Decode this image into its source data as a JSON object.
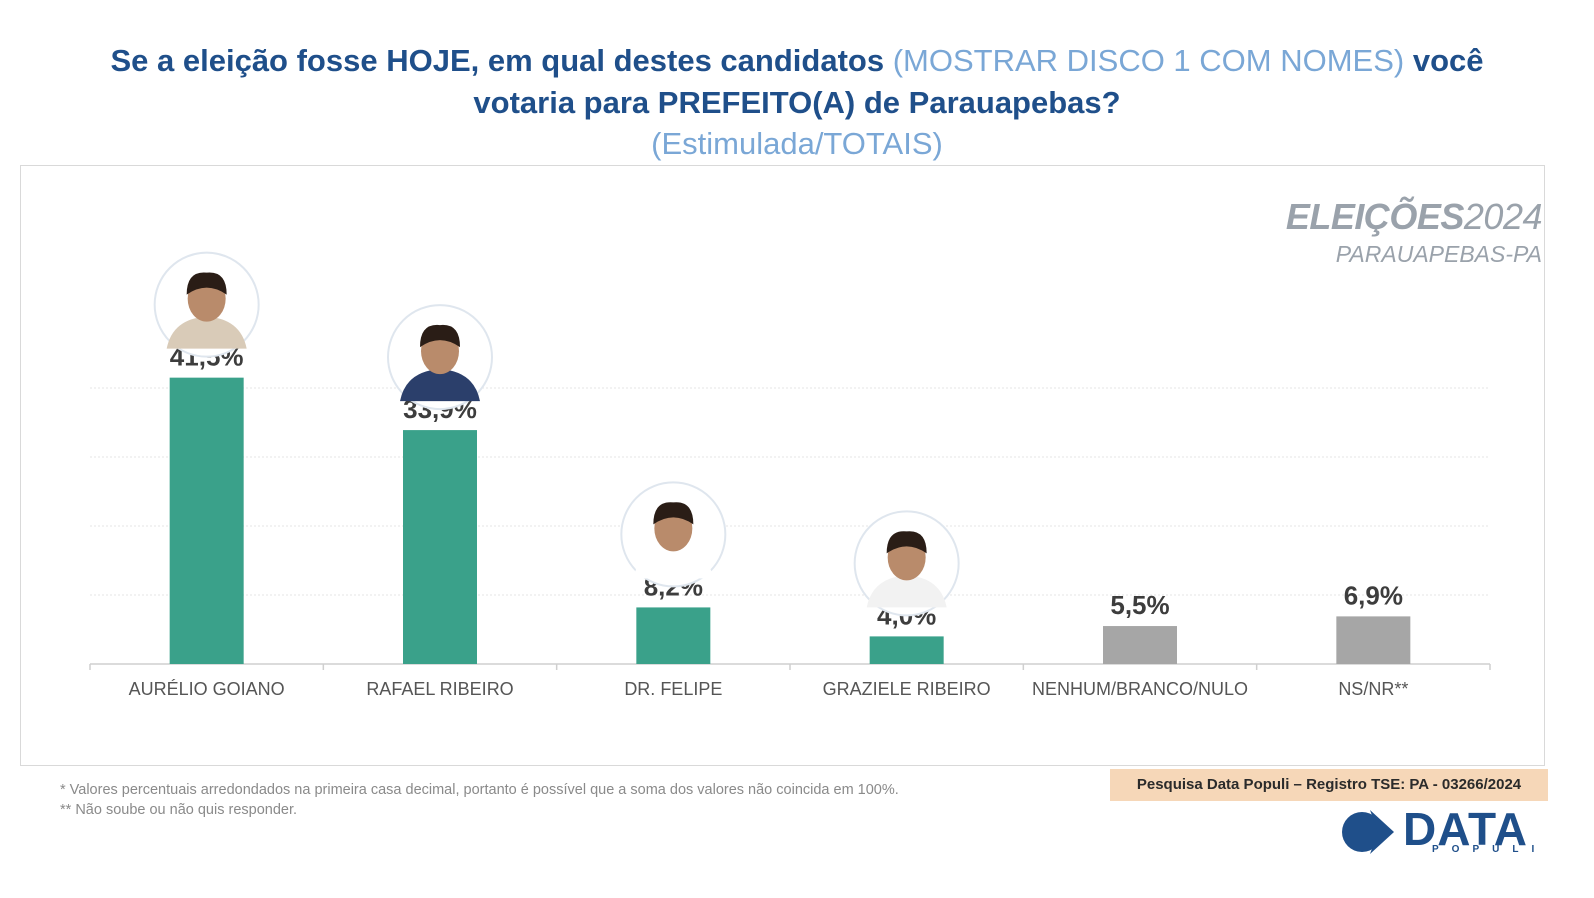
{
  "header": {
    "title_part1": "Se a eleição fosse HOJE, em qual destes candidatos",
    "title_highlight": "(MOSTRAR DISCO 1 COM NOMES)",
    "title_part2": "você",
    "title_line2": "votaria para PREFEITO(A) de Parauapebas?",
    "subtitle": "(Estimulada/TOTAIS)"
  },
  "brand": {
    "title_bold": "ELEIÇÕES",
    "title_year": "2024",
    "subtitle": "PARAUAPEBAS-PA"
  },
  "chart_data": {
    "type": "bar",
    "title": "Se a eleição fosse HOJE, em qual destes candidatos (MOSTRAR DISCO 1 COM NOMES) você votaria para PREFEITO(A) de Parauapebas?",
    "categories": [
      "AURÉLIO GOIANO",
      "RAFAEL RIBEIRO",
      "DR. FELIPE",
      "GRAZIELE RIBEIRO",
      "NENHUM/BRANCO/NULO",
      "NS/NR**"
    ],
    "values": [
      41.5,
      33.9,
      8.2,
      4.0,
      5.5,
      6.9
    ],
    "value_labels": [
      "41,5%",
      "33,9%",
      "8,2%",
      "4,0%",
      "5,5%",
      "6,9%"
    ],
    "has_photo": [
      true,
      true,
      true,
      true,
      false,
      false
    ],
    "bar_colors": [
      "#3aa18a",
      "#3aa18a",
      "#3aa18a",
      "#3aa18a",
      "#a6a6a6",
      "#a6a6a6"
    ],
    "xlabel": "",
    "ylabel": "",
    "ylim": [
      0,
      50
    ],
    "grid": true,
    "legend": "none"
  },
  "footer": {
    "note1": "*  Valores percentuais arredondados na primeira casa decimal, portanto é possível que a soma dos valores não coincida em 100%.",
    "note2": "** Não soube ou não quis responder.",
    "registro": "Pesquisa Data Populi – Registro TSE: PA - 03266/2024",
    "logo_main": "DATA",
    "logo_sub": "POPULI"
  },
  "colors": {
    "title": "#1f4f8a",
    "title_light": "#7aa7d6",
    "bar_candidate": "#3aa18a",
    "bar_other": "#a6a6a6",
    "label": "#3d3d3d"
  }
}
